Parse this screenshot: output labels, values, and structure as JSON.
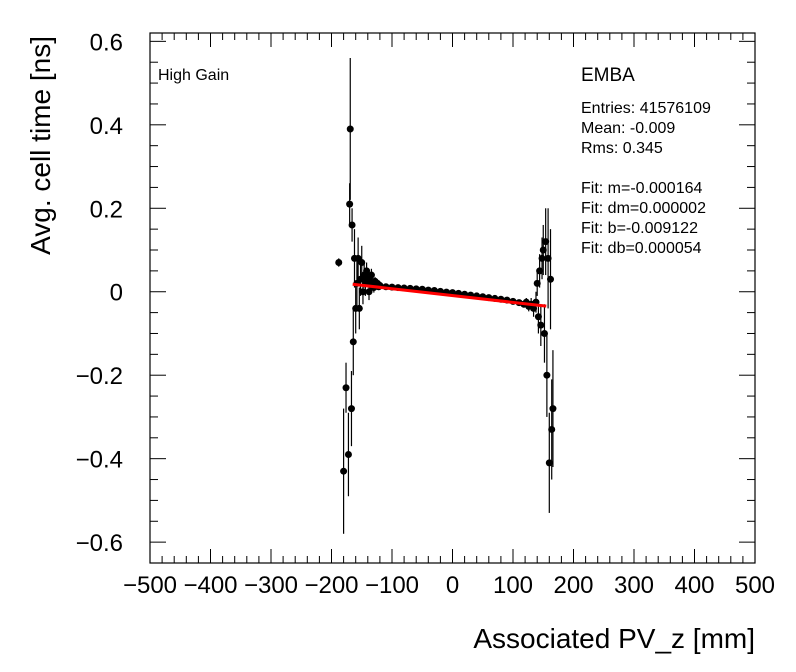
{
  "chart_data": {
    "type": "scatter",
    "title": "",
    "xlabel": "Associated PV_z [mm]",
    "ylabel": "Avg. cell time [ns]",
    "xlim": [
      -500,
      500
    ],
    "ylim": [
      -0.65,
      0.62
    ],
    "x_ticks": [
      -500,
      -400,
      -300,
      -200,
      -100,
      0,
      100,
      200,
      300,
      400,
      500
    ],
    "x_tick_labels": [
      "−500",
      "−400",
      "−300",
      "−200",
      "−100",
      "0",
      "100",
      "200",
      "300",
      "400",
      "500"
    ],
    "y_ticks": [
      -0.6,
      -0.4,
      -0.2,
      0,
      0.2,
      0.4,
      0.6
    ],
    "y_tick_labels": [
      "−0.6",
      "−0.4",
      "−0.2",
      "0",
      "0.2",
      "0.4",
      "0.6"
    ],
    "grid": false,
    "annotations": {
      "gain": "High Gain",
      "partition": "EMBA",
      "stats": [
        "Entries: 41576109",
        "Mean: -0.009",
        "Rms: 0.345",
        "",
        "Fit: m=-0.000164",
        "Fit: dm=0.000002",
        "Fit: b=-0.009122",
        "Fit: db=0.000054"
      ]
    },
    "fit": {
      "m": -0.000164,
      "b": -0.009122,
      "x_range": [
        -165,
        155
      ],
      "color": "#ff0000"
    },
    "marker_color": "#000000",
    "series": [
      {
        "points": [
          [
            -188,
            0.07,
            0.01
          ],
          [
            -180,
            -0.43,
            0.15
          ],
          [
            -176,
            -0.23,
            0.06
          ],
          [
            -172,
            -0.39,
            0.1
          ],
          [
            -170,
            0.21,
            0.05
          ],
          [
            -169,
            0.39,
            0.17
          ],
          [
            -167,
            -0.28,
            0.09
          ],
          [
            -166,
            0.16,
            0.04
          ],
          [
            -164,
            -0.12,
            0.08
          ],
          [
            -162,
            0.08,
            0.07
          ],
          [
            -160,
            -0.04,
            0.06
          ],
          [
            -158,
            0.02,
            0.06
          ],
          [
            -156,
            0.08,
            0.05
          ],
          [
            -154,
            -0.04,
            0.05
          ],
          [
            -152,
            0.03,
            0.04
          ],
          [
            -150,
            0.07,
            0.04
          ],
          [
            -148,
            0.0,
            0.03
          ],
          [
            -146,
            0.04,
            0.03
          ],
          [
            -144,
            0.02,
            0.03
          ],
          [
            -142,
            0.05,
            0.02
          ],
          [
            -140,
            0.03,
            0.02
          ],
          [
            -138,
            0.0,
            0.02
          ],
          [
            -136,
            0.02,
            0.02
          ],
          [
            -134,
            0.04,
            0.015
          ],
          [
            -132,
            0.02,
            0.015
          ],
          [
            -130,
            0.01,
            0.012
          ],
          [
            -128,
            0.025,
            0.01
          ],
          [
            -126,
            0.015,
            0.01
          ],
          [
            -124,
            0.02,
            0.01
          ],
          [
            -122,
            0.012,
            0.008
          ],
          [
            -120,
            0.015,
            0.006
          ],
          [
            -110,
            0.012,
            0.005
          ],
          [
            -100,
            0.011,
            0.004
          ],
          [
            -90,
            0.01,
            0.003
          ],
          [
            -80,
            0.009,
            0.003
          ],
          [
            -70,
            0.008,
            0.002
          ],
          [
            -60,
            0.007,
            0.002
          ],
          [
            -50,
            0.006,
            0.002
          ],
          [
            -40,
            0.004,
            0.002
          ],
          [
            -30,
            0.003,
            0.002
          ],
          [
            -20,
            0.001,
            0.002
          ],
          [
            -10,
            -0.001,
            0.002
          ],
          [
            0,
            -0.002,
            0.002
          ],
          [
            10,
            -0.004,
            0.002
          ],
          [
            20,
            -0.006,
            0.002
          ],
          [
            30,
            -0.008,
            0.002
          ],
          [
            40,
            -0.01,
            0.002
          ],
          [
            50,
            -0.012,
            0.002
          ],
          [
            60,
            -0.014,
            0.003
          ],
          [
            70,
            -0.016,
            0.003
          ],
          [
            80,
            -0.018,
            0.003
          ],
          [
            90,
            -0.02,
            0.004
          ],
          [
            100,
            -0.023,
            0.005
          ],
          [
            110,
            -0.026,
            0.006
          ],
          [
            118,
            -0.03,
            0.008
          ],
          [
            122,
            -0.025,
            0.01
          ],
          [
            126,
            -0.035,
            0.012
          ],
          [
            130,
            -0.03,
            0.015
          ],
          [
            134,
            -0.04,
            0.02
          ],
          [
            138,
            -0.025,
            0.025
          ],
          [
            140,
            0.02,
            0.03
          ],
          [
            142,
            -0.06,
            0.04
          ],
          [
            144,
            0.05,
            0.04
          ],
          [
            146,
            -0.08,
            0.05
          ],
          [
            148,
            0.08,
            0.05
          ],
          [
            150,
            0.1,
            0.06
          ],
          [
            152,
            -0.1,
            0.07
          ],
          [
            154,
            0.12,
            0.08
          ],
          [
            156,
            -0.2,
            0.1
          ],
          [
            158,
            0.08,
            0.12
          ],
          [
            160,
            -0.41,
            0.12
          ],
          [
            162,
            0.03,
            0.12
          ],
          [
            164,
            -0.33,
            0.12
          ],
          [
            166,
            -0.28,
            0.14
          ]
        ]
      }
    ]
  }
}
